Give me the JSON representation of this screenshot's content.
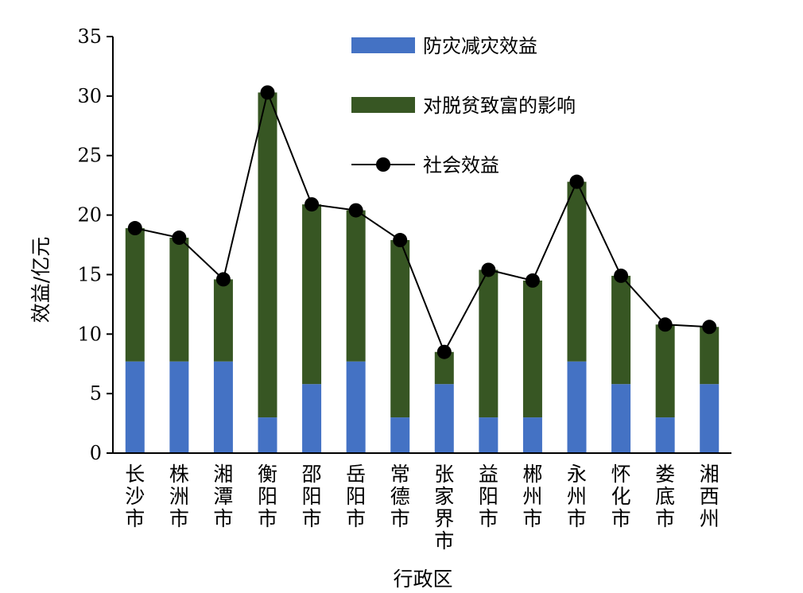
{
  "chart_data": {
    "type": "bar",
    "stacked": true,
    "categories": [
      "长沙市",
      "株洲市",
      "湘潭市",
      "衡阳市",
      "邵阳市",
      "岳阳市",
      "常德市",
      "张家界市",
      "益阳市",
      "郴州市",
      "永州市",
      "怀化市",
      "娄底市",
      "湘西州"
    ],
    "series": [
      {
        "name": "防灾减灾效益",
        "type": "bar",
        "color": "#4472c4",
        "values": [
          7.7,
          7.7,
          7.7,
          3.0,
          5.8,
          7.7,
          3.0,
          5.8,
          3.0,
          3.0,
          7.7,
          5.8,
          3.0,
          5.8
        ]
      },
      {
        "name": "对脱贫致富的影响",
        "type": "bar",
        "color": "#375623",
        "values": [
          11.2,
          10.4,
          6.9,
          27.3,
          15.1,
          12.7,
          14.9,
          2.7,
          12.4,
          11.5,
          15.1,
          9.1,
          7.8,
          4.8
        ]
      },
      {
        "name": "社会效益",
        "type": "line",
        "color": "#000000",
        "values": [
          18.9,
          18.1,
          14.6,
          30.3,
          20.9,
          20.4,
          17.9,
          8.5,
          15.4,
          14.5,
          22.8,
          14.9,
          10.8,
          10.6
        ]
      }
    ],
    "xlabel": "行政区",
    "ylabel": "效益/亿元",
    "ylim": [
      0,
      35
    ],
    "yticks": [
      "0",
      "5",
      "10",
      "15",
      "20",
      "25",
      "30",
      "35"
    ],
    "grid": false,
    "legend_position": "top-right"
  }
}
